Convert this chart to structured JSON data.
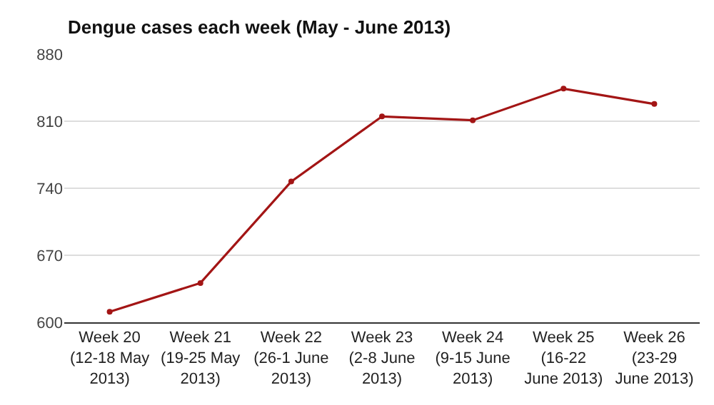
{
  "chart_data": {
    "type": "line",
    "title": "Dengue cases each week (May - June 2013)",
    "categories": [
      "Week 20 (12-18 May 2013)",
      "Week 21 (19-25 May 2013)",
      "Week 22 (26-1 June 2013)",
      "Week 23 (2-8 June 2013)",
      "Week 24 (9-15 June 2013)",
      "Week 25 (16-22 June 2013)",
      "Week 26 (23-29 June 2013)"
    ],
    "series": [
      {
        "color": "#a31515",
        "values": [
          611,
          641,
          747,
          815,
          811,
          844,
          828
        ]
      }
    ],
    "ylim": [
      600,
      880
    ],
    "yticks": [
      600,
      670,
      740,
      810,
      880
    ],
    "grid": "y",
    "legend": false,
    "marker": "circle",
    "line_style": "solid"
  }
}
